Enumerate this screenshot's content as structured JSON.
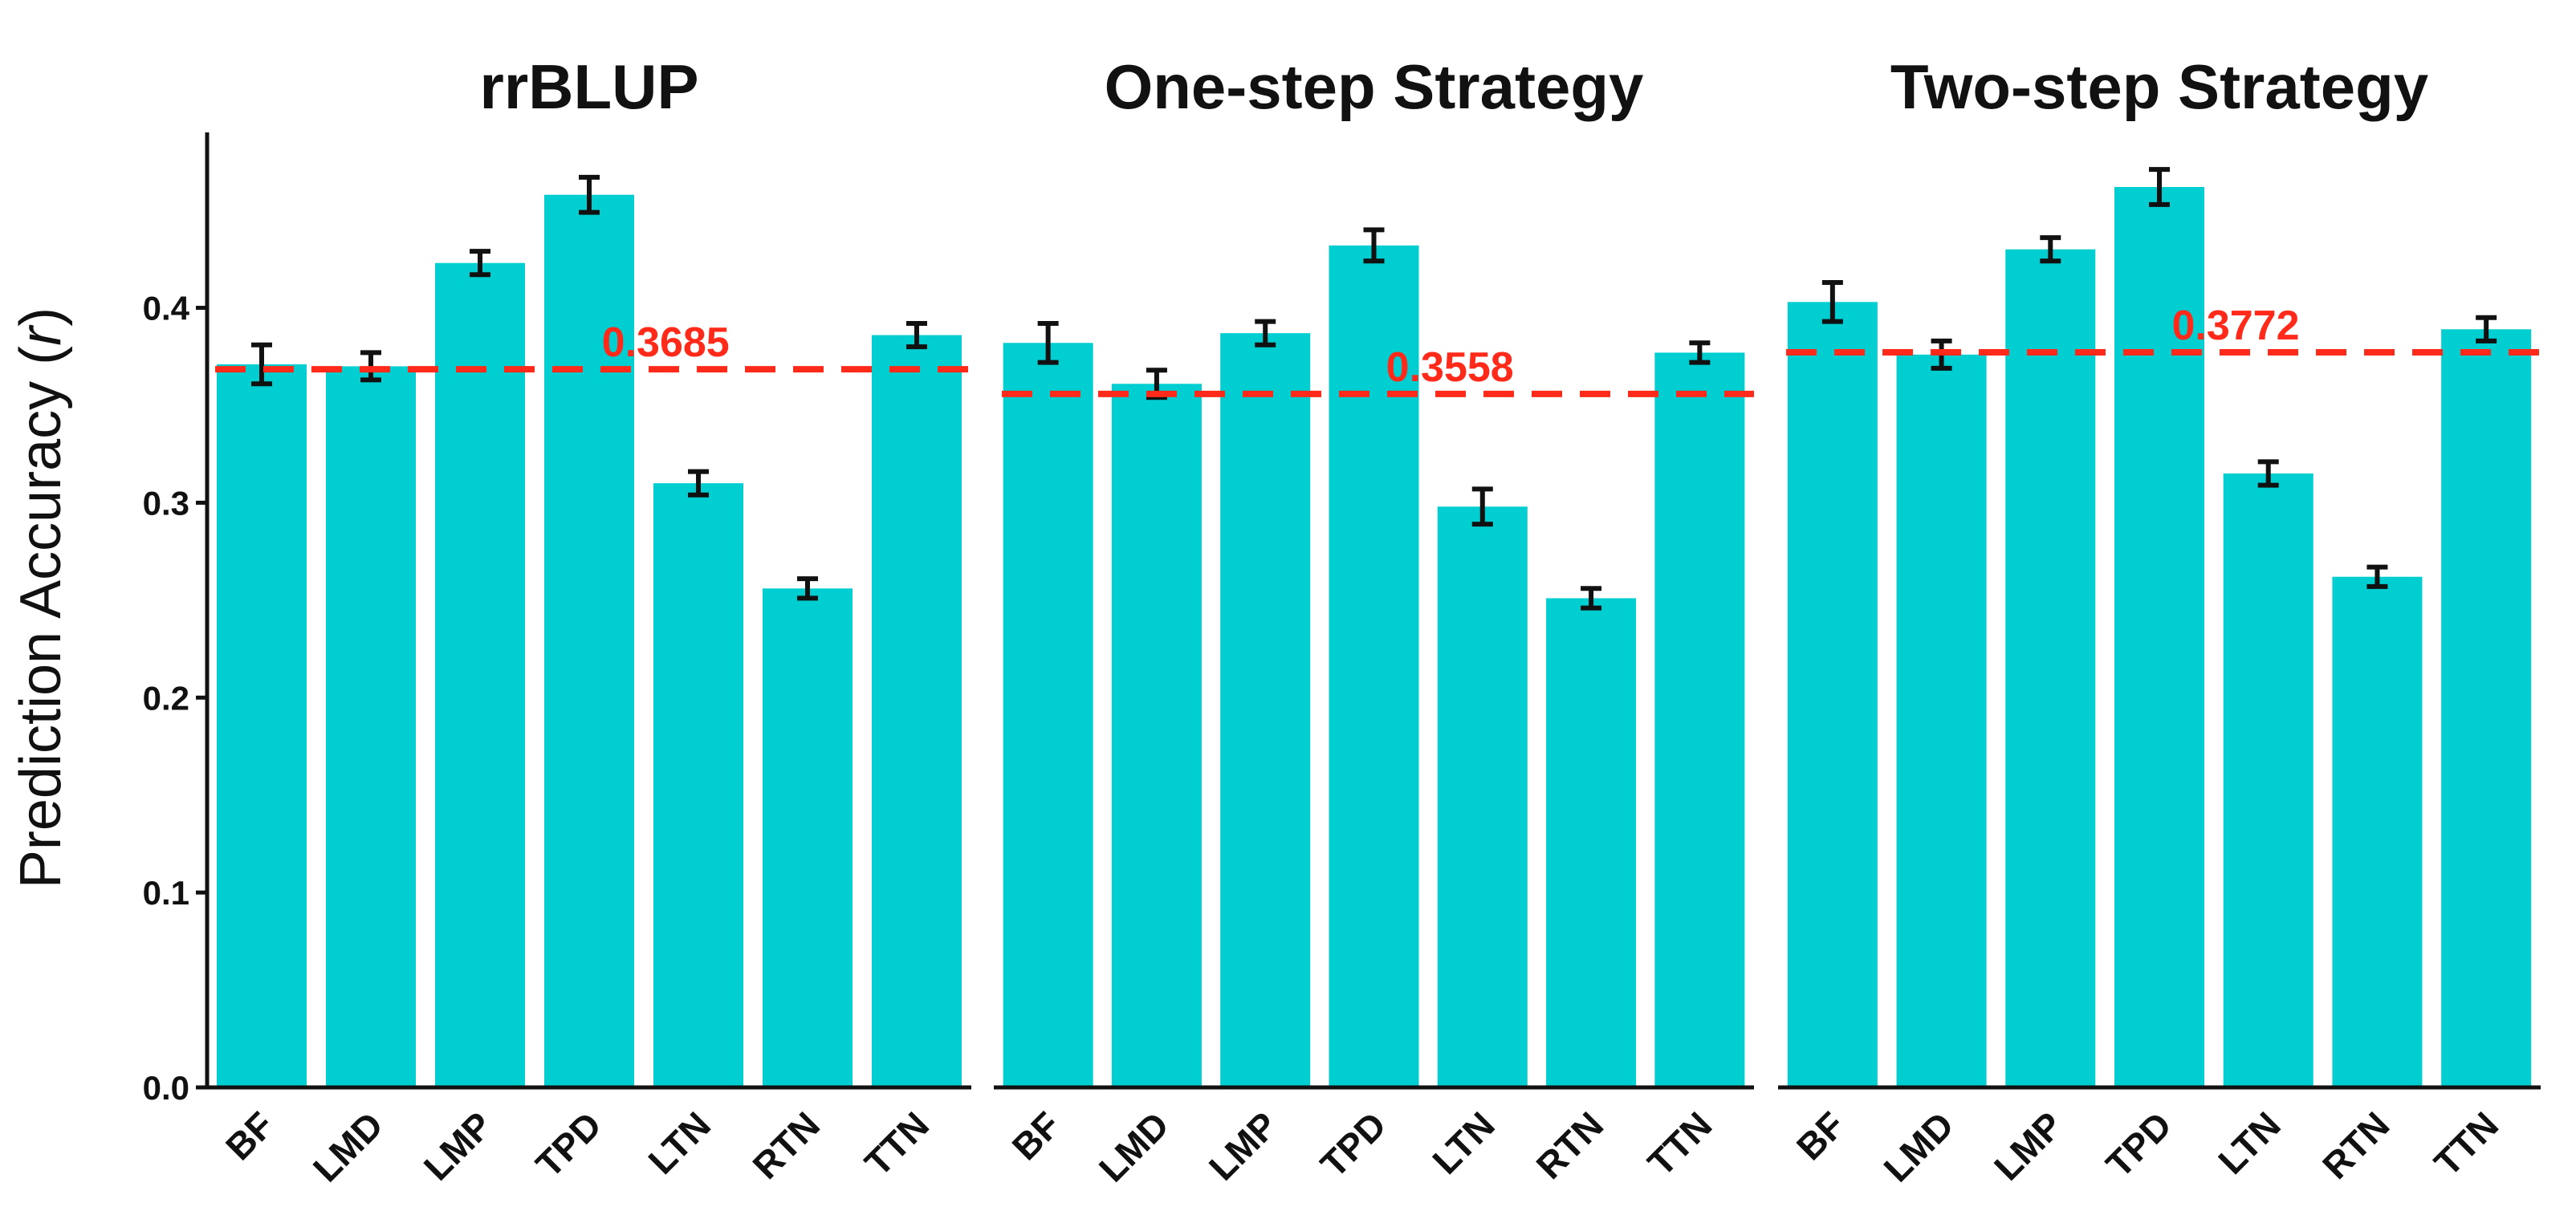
{
  "chart_data": {
    "type": "bar",
    "ylabel": "Prediction Accuracy (r)",
    "ylabel_main": "Prediction Accuracy (",
    "ylabel_var": "r",
    "ylabel_end": ")",
    "ylim": [
      0,
      0.49
    ],
    "y_ticks": [
      "0.0",
      "0.1",
      "0.2",
      "0.3",
      "0.4"
    ],
    "y_tick_values": [
      0.0,
      0.1,
      0.2,
      0.3,
      0.4
    ],
    "categories": [
      "BF",
      "LMD",
      "LMP",
      "TPD",
      "LTN",
      "RTN",
      "TTN"
    ],
    "bar_color": "#00CED1",
    "errorbar_color": "#111111",
    "reference_color": "#FF2A1A",
    "grid": false,
    "legend": "none",
    "panels": [
      {
        "title": "rrBLUP",
        "values": [
          0.371,
          0.37,
          0.423,
          0.458,
          0.31,
          0.256,
          0.386
        ],
        "errors": [
          0.01,
          0.007,
          0.006,
          0.009,
          0.006,
          0.005,
          0.006
        ],
        "reference_value": 0.3685,
        "reference_label": "0.3685"
      },
      {
        "title": "One-step Strategy",
        "values": [
          0.382,
          0.361,
          0.387,
          0.432,
          0.298,
          0.251,
          0.377
        ],
        "errors": [
          0.01,
          0.007,
          0.006,
          0.008,
          0.009,
          0.005,
          0.005
        ],
        "reference_value": 0.3558,
        "reference_label": "0.3558"
      },
      {
        "title": "Two-step Strategy",
        "values": [
          0.403,
          0.376,
          0.43,
          0.462,
          0.315,
          0.262,
          0.389
        ],
        "errors": [
          0.01,
          0.007,
          0.006,
          0.009,
          0.006,
          0.005,
          0.006
        ],
        "reference_value": 0.3772,
        "reference_label": "0.3772"
      }
    ]
  }
}
